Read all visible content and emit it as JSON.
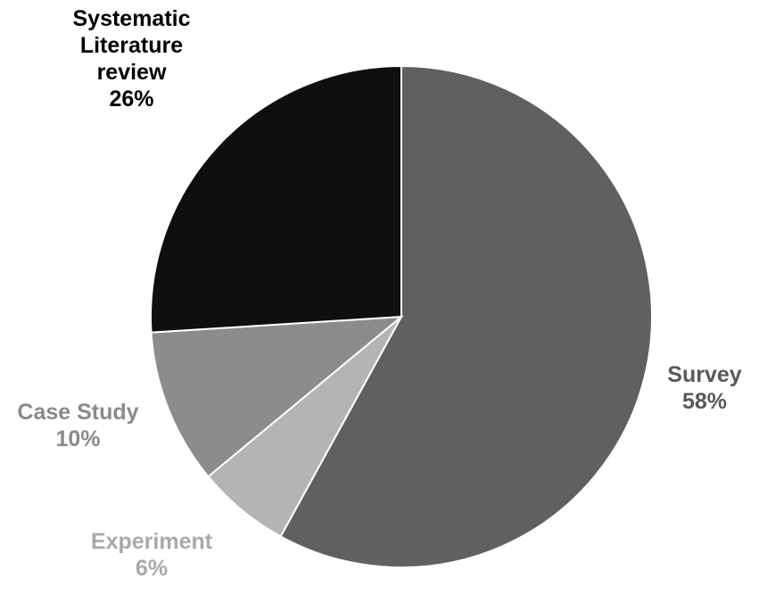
{
  "chart_data": {
    "type": "pie",
    "title": "",
    "slices": [
      {
        "category": "Survey",
        "value": 58,
        "value_label": "58%",
        "color": "#606060",
        "label_color": "#595959",
        "label_lines": [
          "Survey"
        ]
      },
      {
        "category": "Experiment",
        "value": 6,
        "value_label": "6%",
        "color": "#b4b4b4",
        "label_color": "#a9a9a9",
        "label_lines": [
          "Experiment"
        ]
      },
      {
        "category": "Case Study",
        "value": 10,
        "value_label": "10%",
        "color": "#8c8c8c",
        "label_color": "#8a8a8a",
        "label_lines": [
          "Case Study"
        ]
      },
      {
        "category": "Systematic Literature review",
        "value": 26,
        "value_label": "26%",
        "color": "#0f0f0f",
        "label_color": "#000000",
        "label_lines": [
          "Systematic",
          "Literature",
          "review"
        ]
      }
    ],
    "start_angle_deg": 0,
    "direction": "clockwise",
    "legend": "none",
    "slice_border_color": "#ffffff"
  }
}
